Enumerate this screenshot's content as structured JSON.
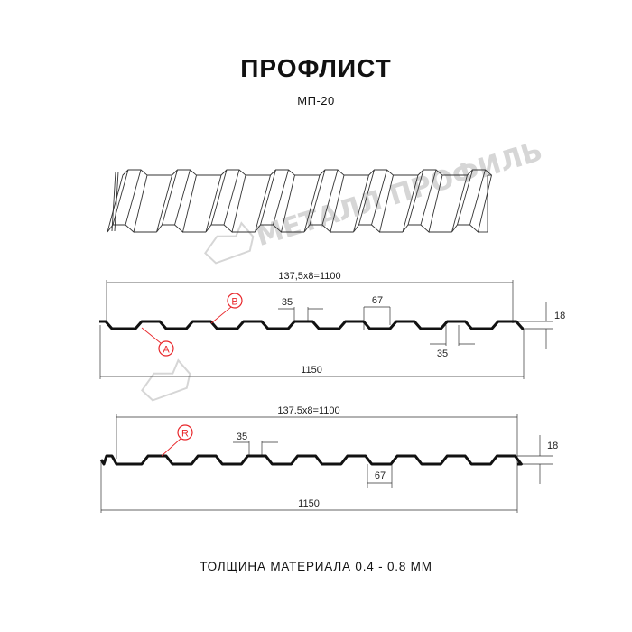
{
  "title": "ПРОФЛИСТ",
  "subtitle": "МП-20",
  "footer": "ТОЛЩИНА МАТЕРИАЛА 0.4 - 0.8 ММ",
  "watermark": "МЕТАЛЛ ПРОФИЛЬ",
  "colors": {
    "profile": "#111111",
    "callout": "#e8262a",
    "watermark": "#d6d6d6",
    "dimension": "#333333"
  },
  "profile_a": {
    "pitch_label": "137,5x8=1100",
    "width_label": "1150",
    "crest_label": "35",
    "bottom_label": "35",
    "trough_label": "67",
    "height_label": "18",
    "callout_a": "A",
    "callout_b": "B"
  },
  "profile_r": {
    "pitch_label": "137.5x8=1100",
    "width_label": "1150",
    "crest_label": "35",
    "trough_label": "67",
    "height_label": "18",
    "callout_r": "R"
  }
}
